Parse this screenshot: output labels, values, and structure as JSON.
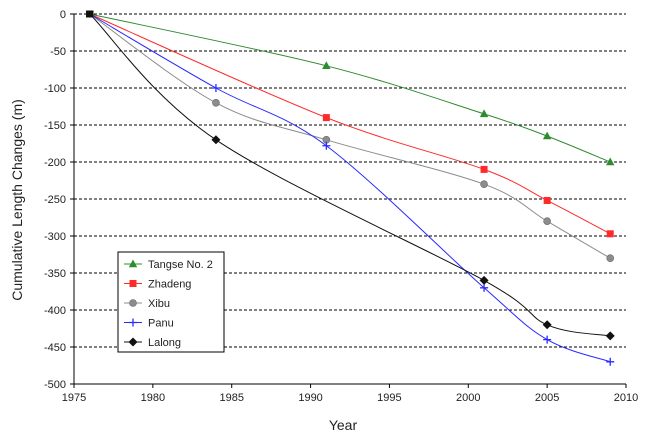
{
  "chart_data": {
    "type": "line",
    "xlabel": "Year",
    "ylabel": "Cumulative Length Changes (m)",
    "xlim": [
      1975,
      2010
    ],
    "ylim": [
      -500,
      0
    ],
    "xticks": [
      1975,
      1980,
      1985,
      1990,
      1995,
      2000,
      2005,
      2010
    ],
    "yticks": [
      0,
      -50,
      -100,
      -150,
      -200,
      -250,
      -300,
      -350,
      -400,
      -450,
      -500
    ],
    "grid": "horizontal dashed",
    "legend_position": "lower-left",
    "series": [
      {
        "name": "Tangse No. 2",
        "color": "#2e8b2e",
        "marker": "triangle",
        "x": [
          1976,
          1991,
          2001,
          2005,
          2009
        ],
        "y": [
          0,
          -70,
          -135,
          -165,
          -200
        ]
      },
      {
        "name": "Zhadeng",
        "color": "#ff2a2a",
        "marker": "square",
        "x": [
          1976,
          1991,
          2001,
          2005,
          2009
        ],
        "y": [
          0,
          -140,
          -210,
          -252,
          -297
        ]
      },
      {
        "name": "Xibu",
        "color": "#8c8c8c",
        "marker": "circle",
        "x": [
          1976,
          1984,
          1991,
          2001,
          2005,
          2009
        ],
        "y": [
          0,
          -120,
          -170,
          -230,
          -280,
          -330
        ]
      },
      {
        "name": "Panu",
        "color": "#2a2aff",
        "marker": "plus",
        "x": [
          1976,
          1984,
          1991,
          2001,
          2005,
          2009
        ],
        "y": [
          0,
          -100,
          -178,
          -370,
          -440,
          -470
        ]
      },
      {
        "name": "Lalong",
        "color": "#111111",
        "marker": "diamond",
        "x": [
          1976,
          1984,
          2001,
          2005,
          2009
        ],
        "y": [
          0,
          -170,
          -360,
          -420,
          -435
        ]
      }
    ]
  }
}
